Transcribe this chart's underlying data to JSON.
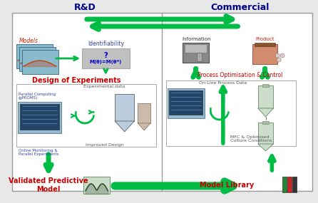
{
  "bg_color": "#e8e8e8",
  "title_rd": "R&D",
  "title_commercial": "Commercial",
  "title_color": "#00008B",
  "title_fontsize": 9,
  "arrow_color": "#00bb44",
  "rd_labels": {
    "models": "Models",
    "identifiability": "Identifiability",
    "formula_q": "?",
    "formula": "M(θ)=M(θ*)",
    "doe": "Design of Experiments",
    "experimental_data": "Experimental data",
    "parallel_computing": "Parallel Computing\n(gPROMS)",
    "improved_design": "Improved Design",
    "online_monitoring": "Online Monitoring &\nParallel Experiments",
    "validated_model": "Validated Predictive\nModel"
  },
  "commercial_labels": {
    "information": "Information",
    "product": "Product",
    "process_opt": "Process Optimisation & Control",
    "online_process": "On-Line Process Data",
    "mfc": "MFC & Optimised\nCulture Conditions",
    "model_library": "Model Library"
  },
  "red_color": "#cc0000",
  "blue_color": "#0000cc",
  "gray_box": "#c0c0c0",
  "label_color_models": "#cc2200",
  "label_color_product": "#cc2200",
  "label_color_info": "#333333",
  "label_color_parallel": "#334499",
  "label_color_online": "#334499"
}
